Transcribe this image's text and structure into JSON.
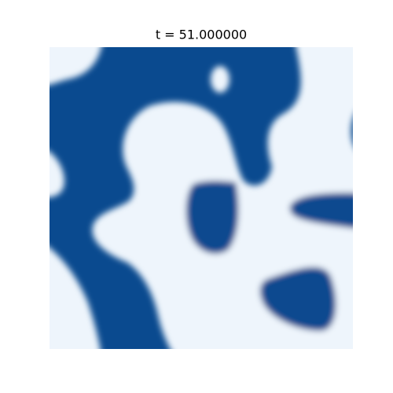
{
  "title": "t = 51.000000"
}
